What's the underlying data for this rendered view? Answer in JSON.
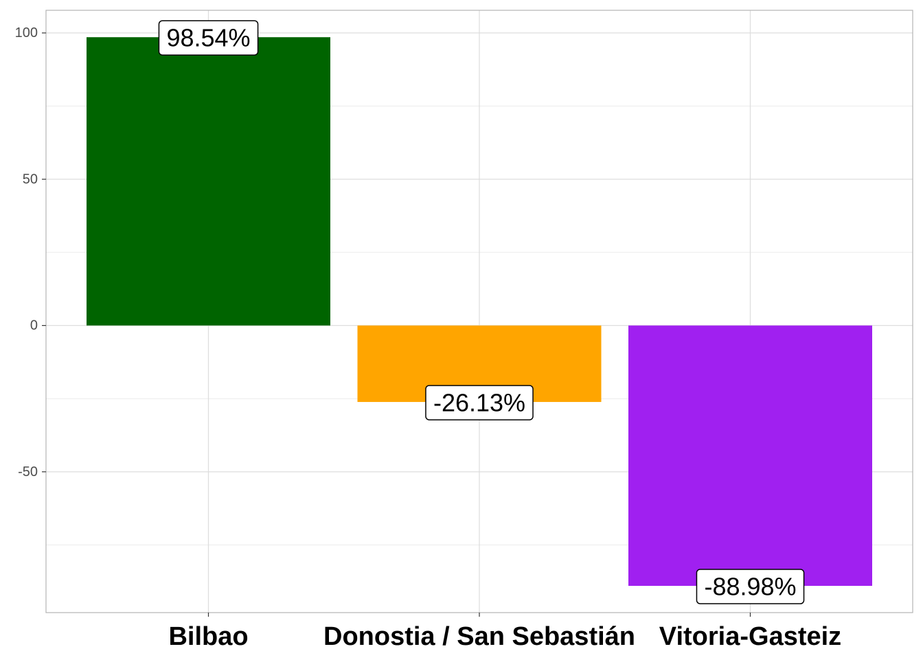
{
  "chart_data": {
    "type": "bar",
    "title": "",
    "xlabel": "",
    "ylabel": "",
    "categories": [
      "Bilbao",
      "Donostia / San Sebastián",
      "Vitoria-Gasteiz"
    ],
    "values": [
      98.54,
      -26.13,
      -88.98
    ],
    "data_labels": [
      "98.54%",
      "-26.13%",
      "-88.98%"
    ],
    "colors": [
      "#006400",
      "#FFA500",
      "#A020F0"
    ],
    "ylim": [
      -98,
      107.5
    ],
    "yticks": [
      100,
      50,
      0,
      -50
    ],
    "ytick_labels": [
      "100",
      "50",
      "0",
      "-50"
    ],
    "grid": true,
    "legend": "none"
  }
}
